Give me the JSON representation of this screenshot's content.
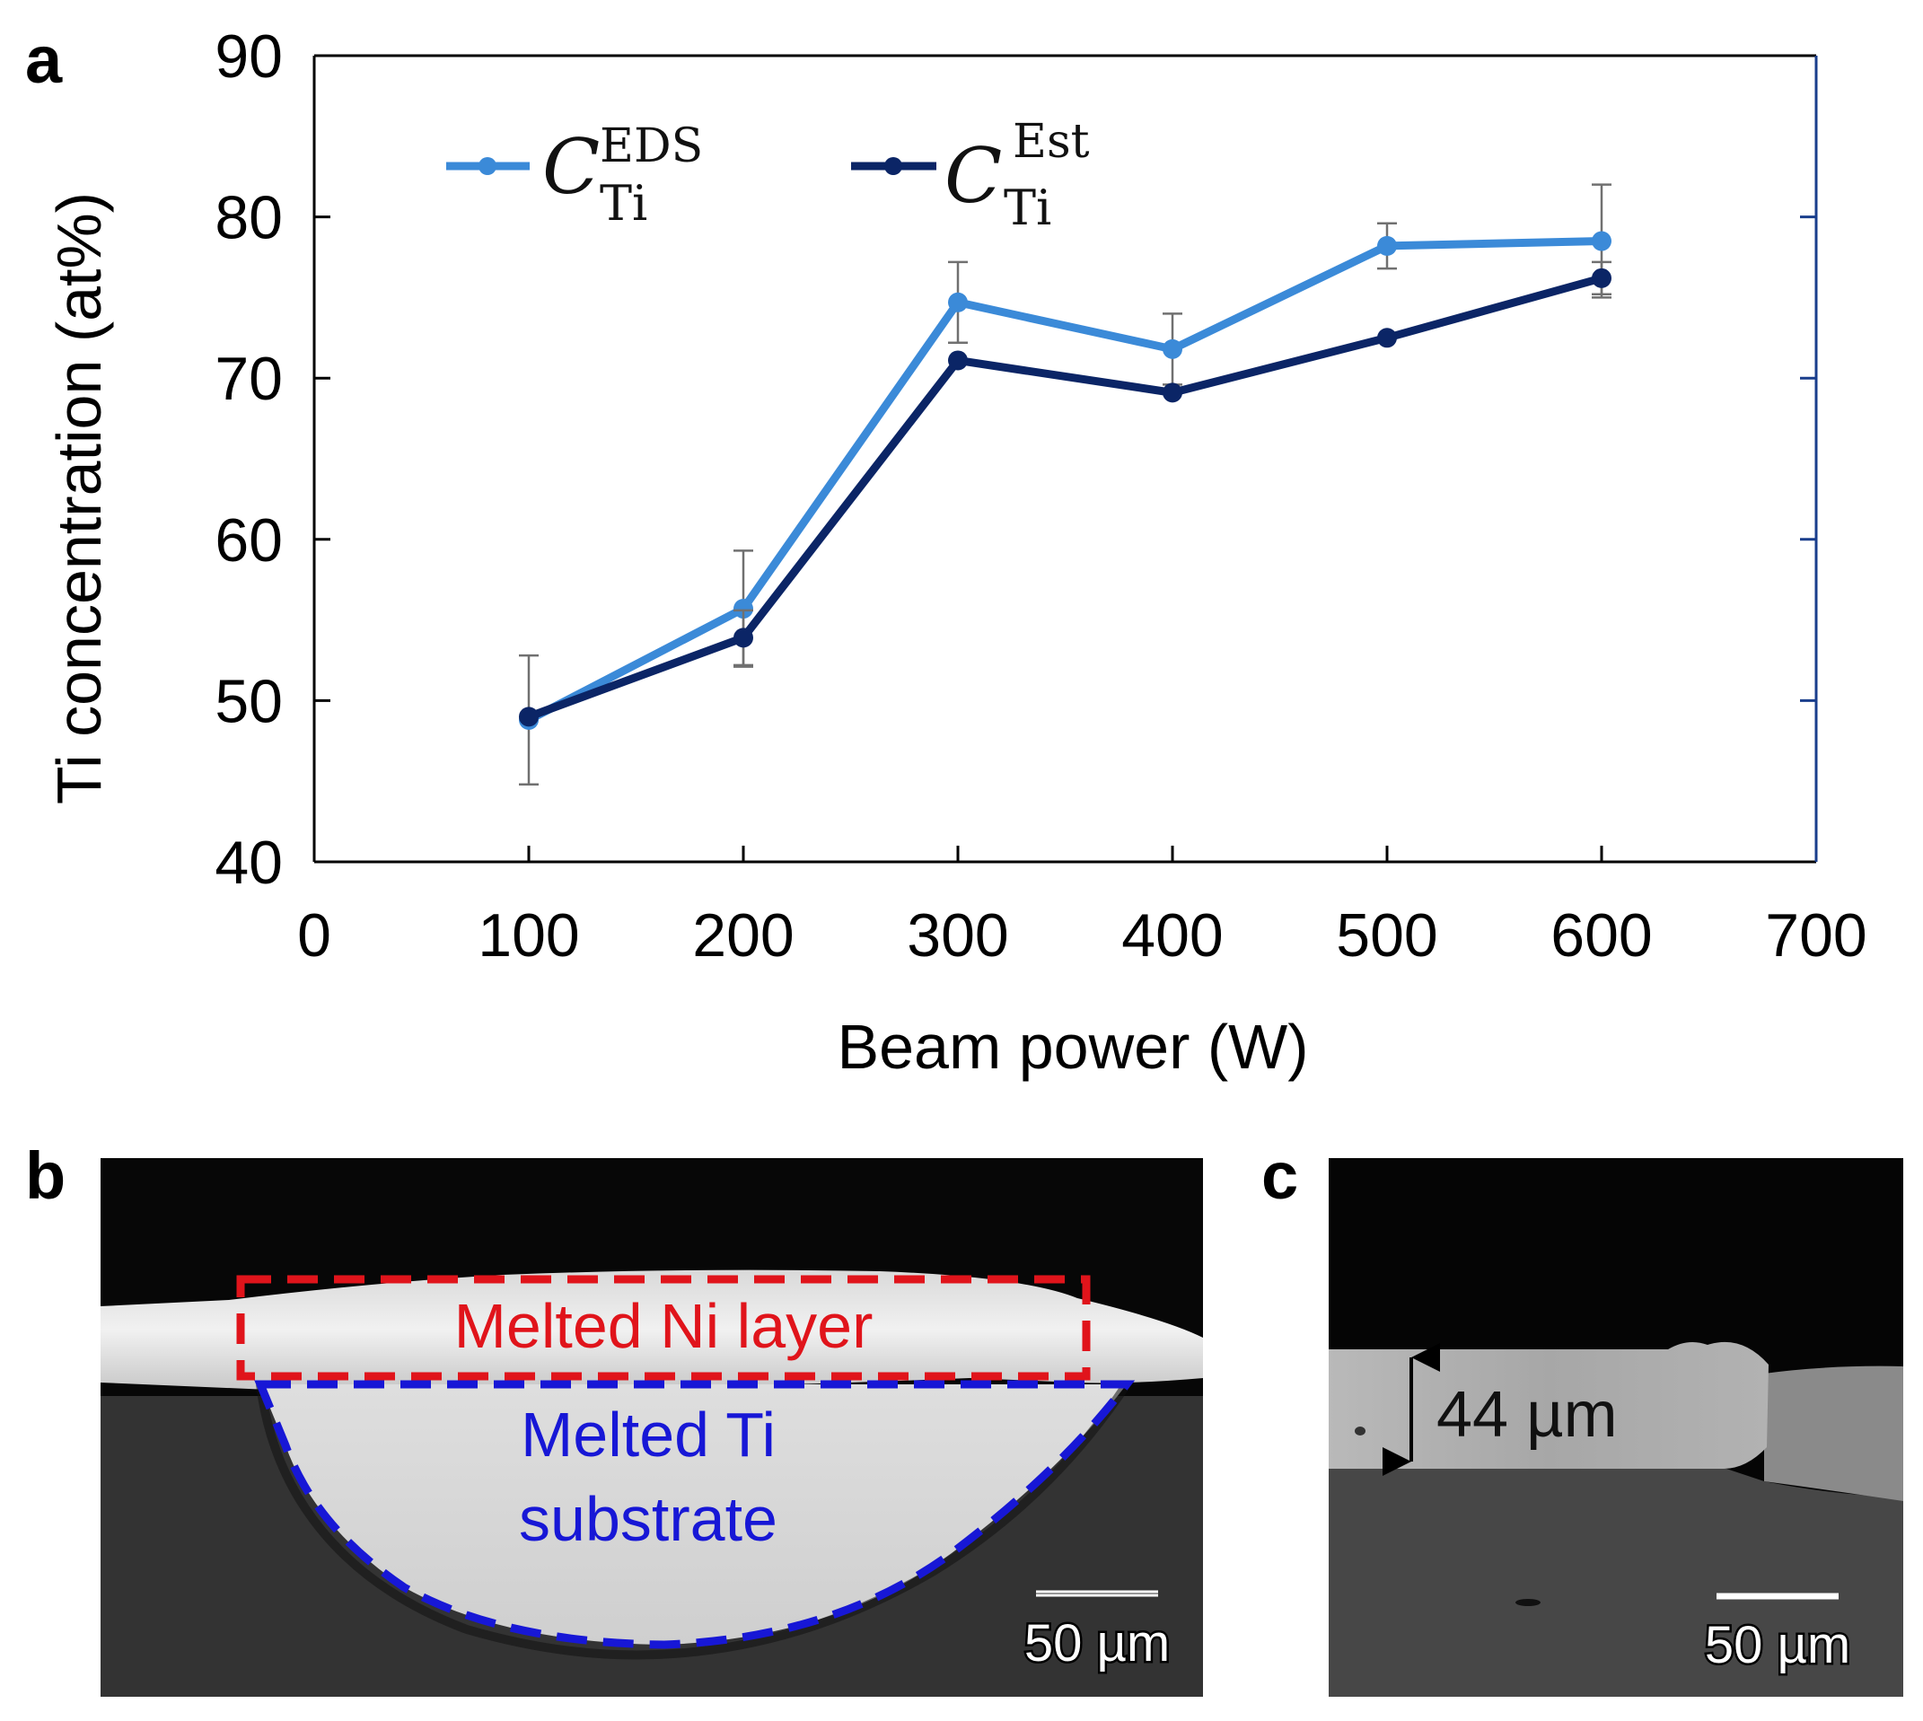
{
  "panels": {
    "a": "a",
    "b": "b",
    "c": "c"
  },
  "chart_data": {
    "type": "line",
    "title": "",
    "xlabel": "Beam power (W)",
    "ylabel": "Ti concentration (at%)",
    "xlim": [
      0,
      700
    ],
    "ylim": [
      40,
      90
    ],
    "xticks": [
      0,
      100,
      200,
      300,
      400,
      500,
      600,
      700
    ],
    "yticks": [
      40,
      50,
      60,
      70,
      80,
      90
    ],
    "x": [
      100,
      200,
      300,
      400,
      500,
      600
    ],
    "series": [
      {
        "name": "C_Ti^EDS",
        "label_main": "C",
        "label_sub": "Ti",
        "label_sup": "EDS",
        "color": "#3b8ad8",
        "values": [
          48.8,
          55.7,
          74.7,
          71.8,
          78.2,
          78.5
        ],
        "error": [
          4.0,
          3.6,
          2.5,
          2.2,
          1.4,
          3.5
        ]
      },
      {
        "name": "C_Ti^Est",
        "label_main": "C",
        "label_sub": "Ti",
        "label_sup": "Est",
        "color": "#0b2566",
        "values": [
          49.0,
          53.9,
          71.1,
          69.1,
          72.5,
          76.2
        ],
        "error": [
          0,
          1.7,
          0,
          0,
          0,
          1.0
        ]
      }
    ],
    "grid": false,
    "legend_position": "top-left",
    "right_axis_color": "#1a3e8c"
  },
  "micrographs": {
    "b": {
      "ni_layer_label": "Melted Ni layer",
      "ni_layer_color": "#e0141b",
      "ti_substrate_label": "Melted Ti substrate",
      "ti_substrate_line1": "Melted Ti",
      "ti_substrate_line2": "substrate",
      "ti_substrate_color": "#1717d6",
      "scale_bar": "50 µm"
    },
    "c": {
      "thickness_label": "44 µm",
      "scale_bar": "50 µm"
    }
  }
}
